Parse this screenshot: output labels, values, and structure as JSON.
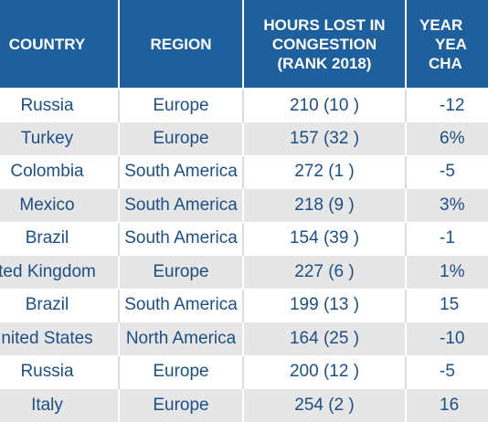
{
  "table": {
    "headers": {
      "country": "COUNTRY",
      "region": "REGION",
      "hours_line1": "HOURS LOST IN",
      "hours_line2": "CONGESTION",
      "hours_line3": "(RANK 2018)",
      "yoy_line1": "YEAR",
      "yoy_line2": "YEA",
      "yoy_line3": "CHA"
    },
    "rows": [
      {
        "country": "Russia",
        "region": "Europe",
        "hours": "210 (10 )",
        "yoy": "-12"
      },
      {
        "country": "Turkey",
        "region": "Europe",
        "hours": "157 (32 )",
        "yoy": "6%"
      },
      {
        "country": "Colombia",
        "region": "South America",
        "hours": "272 (1 )",
        "yoy": "-5"
      },
      {
        "country": "Mexico",
        "region": "South America",
        "hours": "218 (9 )",
        "yoy": "3%"
      },
      {
        "country": "Brazil",
        "region": "South America",
        "hours": "154 (39 )",
        "yoy": "-1"
      },
      {
        "country": "ted Kingdom",
        "region": "Europe",
        "hours": "227 (6 )",
        "yoy": "1%"
      },
      {
        "country": "Brazil",
        "region": "South America",
        "hours": "199 (13 )",
        "yoy": "15"
      },
      {
        "country": "nited States",
        "region": "North America",
        "hours": "164 (25 )",
        "yoy": "-10"
      },
      {
        "country": "Russia",
        "region": "Europe",
        "hours": "200 (12 )",
        "yoy": "-5"
      },
      {
        "country": "Italy",
        "region": "Europe",
        "hours": "254 (2 )",
        "yoy": "16"
      }
    ]
  },
  "colors": {
    "header_bg": "#1e5f9e",
    "header_text": "#ffffff",
    "cell_text": "#1c4f86",
    "stripe": "#e6e6e6"
  }
}
